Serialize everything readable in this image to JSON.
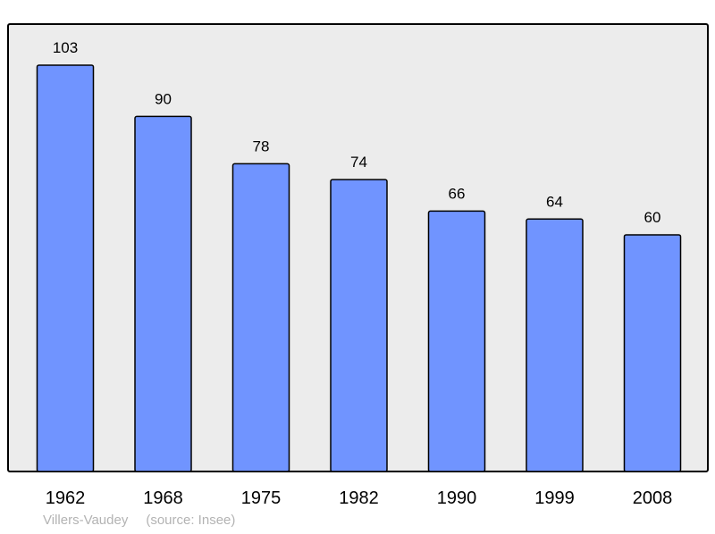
{
  "chart_data": {
    "type": "bar",
    "categories": [
      "1962",
      "1968",
      "1975",
      "1982",
      "1990",
      "1999",
      "2008"
    ],
    "values": [
      103,
      90,
      78,
      74,
      66,
      64,
      60
    ],
    "title": "",
    "xlabel": "",
    "ylabel": "",
    "ylim": [
      0,
      112
    ],
    "grid": false,
    "legend": "none"
  },
  "footer": {
    "place": "Villers-Vaudey",
    "source": "(source: Insee)"
  },
  "colors": {
    "bar": "#7094ff",
    "plot_background": "#ececec",
    "axis": "#000000",
    "footer_text": "#b3b3b3"
  }
}
